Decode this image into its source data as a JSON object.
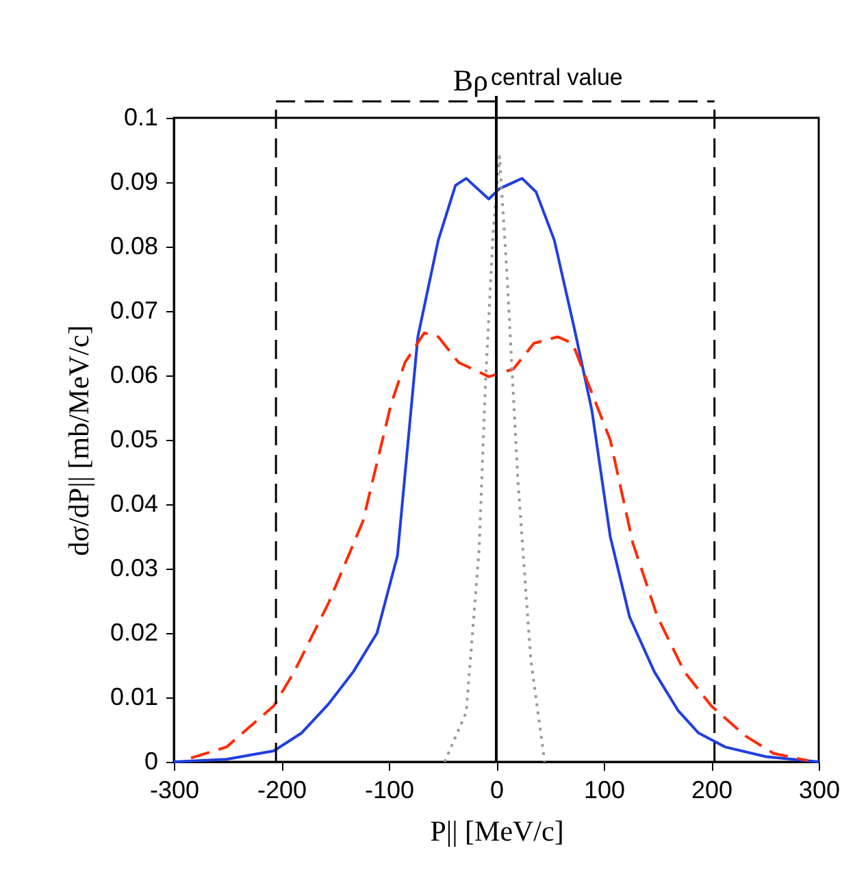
{
  "chart_data": {
    "type": "line",
    "xlabel": "P||  [MeV/c]",
    "ylabel": "dσ/dP||  [mb/MeV/c]",
    "xlim": [
      -300,
      300
    ],
    "xticks": [
      -300,
      -200,
      -100,
      0,
      100,
      200,
      300
    ],
    "ylim": [
      0,
      0.1
    ],
    "yticks": [
      0,
      0.01,
      0.02,
      0.03,
      0.04,
      0.05,
      0.06,
      0.07,
      0.08,
      0.09,
      0.1
    ],
    "grid": false,
    "marker": "none",
    "series": [
      {
        "color": "#1f3fe0",
        "line_style": "solid",
        "x": [
          -300,
          -251,
          -207,
          -181,
          -156,
          -133,
          -111,
          -92,
          -73,
          -54,
          -38,
          -28,
          -7,
          3,
          24,
          37,
          54,
          73,
          89,
          106,
          124,
          147,
          169,
          188,
          213,
          251,
          300
        ],
        "values": [
          0,
          0.0004,
          0.0017,
          0.0045,
          0.009,
          0.014,
          0.02,
          0.032,
          0.066,
          0.081,
          0.0895,
          0.0906,
          0.0874,
          0.089,
          0.0906,
          0.0885,
          0.081,
          0.067,
          0.0545,
          0.035,
          0.0225,
          0.014,
          0.008,
          0.0045,
          0.0023,
          0.0008,
          0
        ]
      },
      {
        "color": "#ff2a00",
        "line_style": "dashed",
        "x": [
          -284,
          -251,
          -207,
          -188,
          -156,
          -124,
          -98,
          -85,
          -67,
          -54,
          -35,
          -22,
          -7,
          16,
          35,
          57,
          71,
          83,
          106,
          127,
          150,
          175,
          200,
          232,
          258,
          290
        ],
        "values": [
          0.0006,
          0.0023,
          0.0087,
          0.014,
          0.0247,
          0.0374,
          0.0555,
          0.062,
          0.0666,
          0.066,
          0.062,
          0.061,
          0.0598,
          0.061,
          0.065,
          0.066,
          0.065,
          0.0598,
          0.05,
          0.034,
          0.0225,
          0.014,
          0.0087,
          0.004,
          0.0013,
          0.0002
        ]
      },
      {
        "color": "#999999",
        "line_style": "dotted",
        "x": [
          -48,
          -28,
          -16,
          -10,
          -3,
          3,
          10,
          20,
          32,
          45
        ],
        "values": [
          0,
          0.0077,
          0.033,
          0.059,
          0.082,
          0.094,
          0.0755,
          0.044,
          0.016,
          0
        ]
      }
    ],
    "ref_lines": [
      {
        "axis": "x",
        "value": 0,
        "label": "central value",
        "color": "#000000",
        "line_style": "solid"
      },
      {
        "axis": "x",
        "value": -205,
        "color": "#000000",
        "line_style": "dashed"
      },
      {
        "axis": "x",
        "value": 203,
        "color": "#000000",
        "line_style": "dashed"
      }
    ],
    "annotations": [
      "Bρ"
    ]
  }
}
